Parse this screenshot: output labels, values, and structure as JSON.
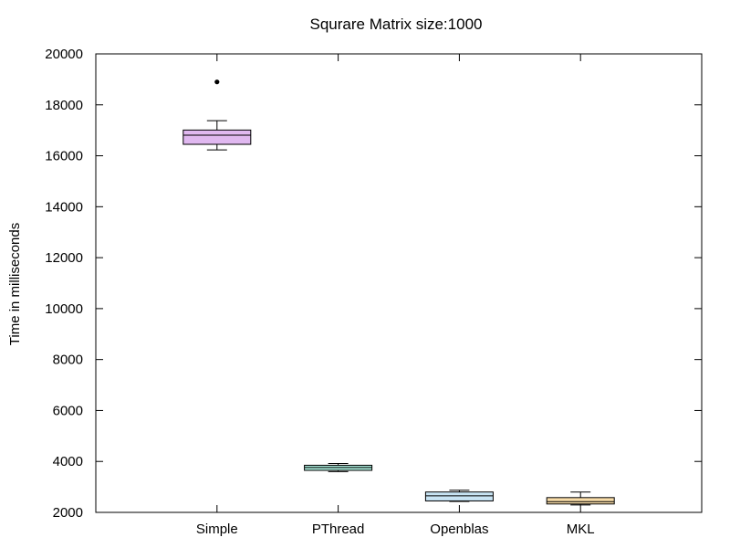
{
  "chart_data": {
    "type": "boxplot",
    "title": "Squrare Matrix size:1000",
    "xlabel": "",
    "ylabel": "Time in milliseconds",
    "ylim": [
      2000,
      20000
    ],
    "yticks": [
      2000,
      4000,
      6000,
      8000,
      10000,
      12000,
      14000,
      16000,
      18000,
      20000
    ],
    "grid": false,
    "categories": [
      "Simple",
      "PThread",
      "Openblas",
      "MKL"
    ],
    "boxes": [
      {
        "category": "Simple",
        "whisker_low": 16230,
        "q1": 16450,
        "median": 16810,
        "q3": 17010,
        "whisker_high": 17380,
        "outliers": [
          18900
        ],
        "color": "#e0b8f0"
      },
      {
        "category": "PThread",
        "whisker_low": 3600,
        "q1": 3650,
        "median": 3760,
        "q3": 3850,
        "whisker_high": 3920,
        "outliers": [],
        "color": "#a8e8d8"
      },
      {
        "category": "Openblas",
        "whisker_low": 2430,
        "q1": 2450,
        "median": 2650,
        "q3": 2800,
        "whisker_high": 2870,
        "outliers": [],
        "color": "#c8e4f4"
      },
      {
        "category": "MKL",
        "whisker_low": 2290,
        "q1": 2330,
        "median": 2420,
        "q3": 2580,
        "whisker_high": 2800,
        "outliers": [],
        "color": "#f8dca8"
      }
    ]
  }
}
